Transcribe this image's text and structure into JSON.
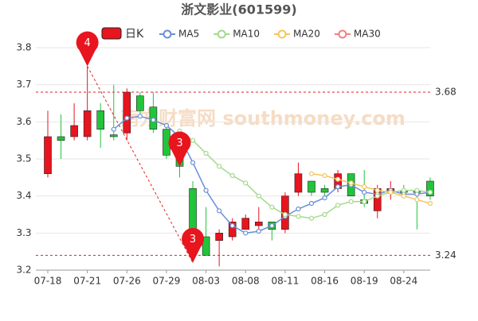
{
  "chart_data": {
    "type": "candlestick",
    "title": "浙文影业(601599)",
    "watermark": "南方财富网 southmoney.com",
    "categories": [
      "07-18",
      null,
      null,
      "07-21",
      null,
      null,
      "07-26",
      null,
      null,
      "07-29",
      null,
      null,
      "08-03",
      null,
      null,
      "08-08",
      null,
      null,
      "08-11",
      null,
      null,
      "08-16",
      null,
      null,
      "08-19",
      null,
      null,
      "08-24",
      null,
      null
    ],
    "candle_name": "日K",
    "up_color": "#e8141e",
    "down_color": "#22c43a",
    "open": [
      3.46,
      3.56,
      3.56,
      3.56,
      3.63,
      3.565,
      3.57,
      3.67,
      3.64,
      3.58,
      3.51,
      3.42,
      3.29,
      3.28,
      3.29,
      3.31,
      3.32,
      3.33,
      3.31,
      3.41,
      3.44,
      3.42,
      3.42,
      3.46,
      3.39,
      3.36,
      3.41,
      3.415,
      3.412,
      3.44
    ],
    "high": [
      3.63,
      3.62,
      3.65,
      3.75,
      3.65,
      3.7,
      3.69,
      3.68,
      3.68,
      3.59,
      3.52,
      3.44,
      3.37,
      3.31,
      3.34,
      3.35,
      3.37,
      3.33,
      3.41,
      3.49,
      3.44,
      3.43,
      3.47,
      3.46,
      3.47,
      3.43,
      3.44,
      3.43,
      3.42,
      3.45
    ],
    "low": [
      3.45,
      3.5,
      3.55,
      3.55,
      3.53,
      3.55,
      3.55,
      3.62,
      3.57,
      3.5,
      3.45,
      3.22,
      3.24,
      3.21,
      3.28,
      3.31,
      3.31,
      3.28,
      3.3,
      3.4,
      3.4,
      3.4,
      3.41,
      3.4,
      3.37,
      3.34,
      3.39,
      3.4,
      3.31,
      3.39
    ],
    "close": [
      3.56,
      3.55,
      3.59,
      3.63,
      3.58,
      3.56,
      3.68,
      3.63,
      3.58,
      3.51,
      3.48,
      3.29,
      3.24,
      3.3,
      3.33,
      3.34,
      3.33,
      3.31,
      3.4,
      3.46,
      3.41,
      3.41,
      3.46,
      3.4,
      3.38,
      3.42,
      3.42,
      3.41,
      3.41,
      3.4
    ],
    "series": [
      {
        "name": "MA5",
        "color": "#6a8fd6",
        "values": [
          null,
          null,
          null,
          null,
          null,
          3.58,
          3.61,
          3.615,
          3.605,
          3.59,
          3.56,
          3.49,
          3.415,
          3.36,
          3.32,
          3.3,
          3.305,
          3.32,
          3.345,
          3.365,
          3.38,
          3.395,
          3.425,
          3.43,
          3.41,
          3.405,
          3.415,
          3.405,
          3.405,
          3.41
        ]
      },
      {
        "name": "MA10",
        "color": "#a3d98a",
        "values": [
          null,
          null,
          null,
          null,
          null,
          null,
          null,
          null,
          null,
          null,
          3.575,
          3.55,
          3.515,
          3.48,
          3.455,
          3.435,
          3.4,
          3.37,
          3.35,
          3.345,
          3.34,
          3.35,
          3.375,
          3.385,
          3.385,
          3.4,
          3.41,
          3.415,
          3.415,
          3.41
        ]
      },
      {
        "name": "MA20",
        "color": "#f5c55a",
        "values": [
          null,
          null,
          null,
          null,
          null,
          null,
          null,
          null,
          null,
          null,
          null,
          null,
          null,
          null,
          null,
          null,
          null,
          null,
          null,
          null,
          3.46,
          3.455,
          3.445,
          3.435,
          3.425,
          3.415,
          3.41,
          3.4,
          3.39,
          3.38
        ]
      },
      {
        "name": "MA30",
        "color": "#f08080",
        "values": [
          null,
          null,
          null,
          null,
          null,
          null,
          null,
          null,
          null,
          null,
          null,
          null,
          null,
          null,
          null,
          null,
          null,
          null,
          null,
          null,
          null,
          null,
          null,
          null,
          null,
          null,
          null,
          null,
          null,
          null
        ]
      }
    ],
    "ylim": [
      3.2,
      3.8
    ],
    "yticks": [
      3.2,
      3.3,
      3.4,
      3.5,
      3.6,
      3.7,
      3.8
    ],
    "grid": true,
    "hlines": [
      3.68,
      3.24
    ],
    "markers": [
      {
        "label": "4",
        "index": 3,
        "value": 3.75
      },
      {
        "label": "3",
        "index": 10,
        "value": 3.48
      },
      {
        "label": "3",
        "index": 11,
        "value": 3.22
      }
    ]
  }
}
